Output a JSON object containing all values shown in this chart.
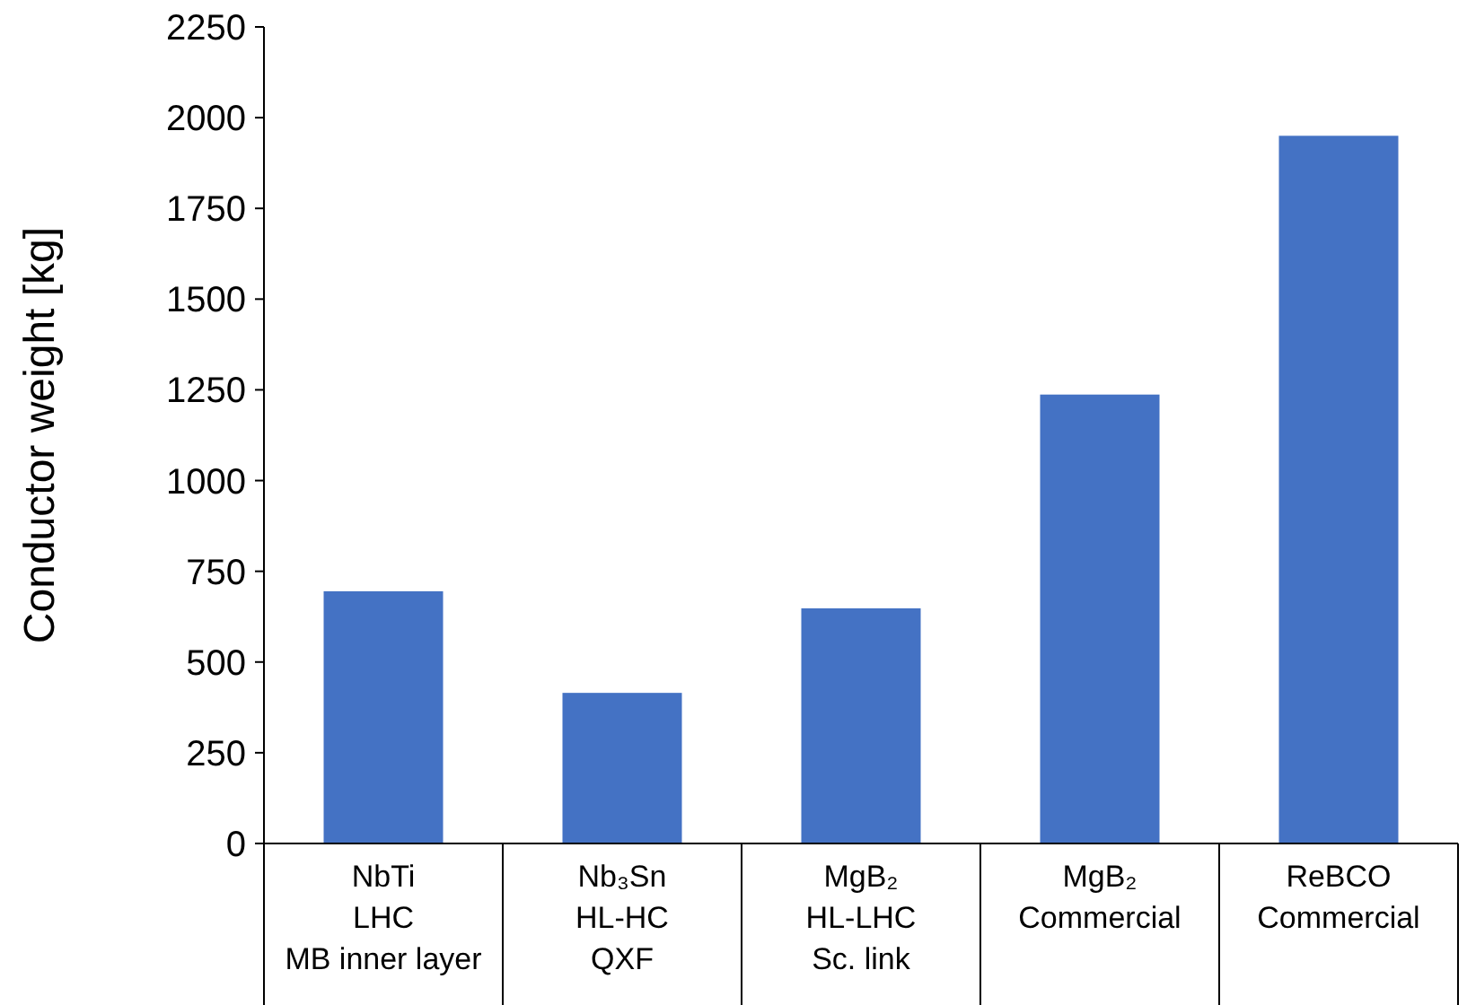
{
  "chart_data": {
    "type": "bar",
    "ylabel": "Conductor weight  [kg]",
    "categories": [
      "NbTi\nLHC\nMB inner layer",
      "Nb₃Sn\nHL-HC\nQXF",
      "MgB₂\nHL-LHC\nSc. link",
      "MgB₂\nCommercial",
      "ReBCO\nCommercial"
    ],
    "values": [
      695,
      415,
      648,
      1237,
      1950
    ],
    "color": "#4472c4",
    "ylim": [
      0,
      2250
    ],
    "yticks": [
      0,
      250,
      500,
      750,
      1000,
      1250,
      1500,
      1750,
      2000,
      2250
    ],
    "grid": false
  }
}
